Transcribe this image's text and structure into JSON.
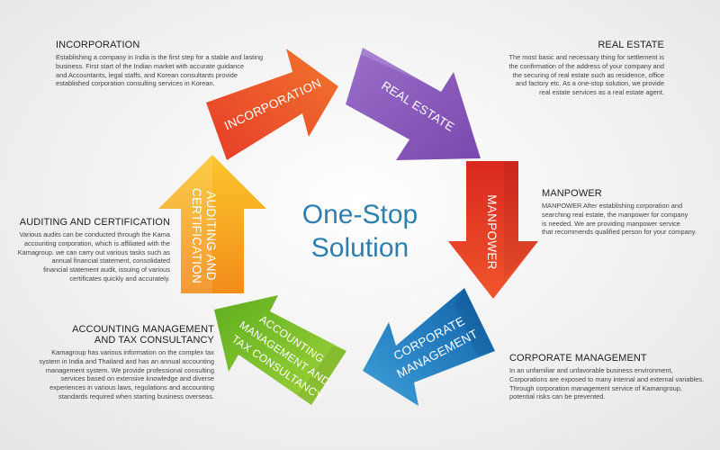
{
  "title": {
    "line1": "One-Stop",
    "line2": "Solution"
  },
  "arrows": {
    "incorporation": "INCORPORATION",
    "real_estate": "REAL ESTATE",
    "manpower": "MANPOWER",
    "corporate_line1": "CORPORATE",
    "corporate_line2": "MANAGEMENT",
    "accounting_line1": "ACCOUNTING",
    "accounting_line2": "MANAGEMENT AND",
    "accounting_line3": "TAX CONSULTANCY",
    "auditing_line1": "AUDITING AND",
    "auditing_line2": "CERTIFICATION"
  },
  "colors": {
    "incorporation": "#e8502a",
    "real_estate": "#8a5ab8",
    "manpower": "#e33a26",
    "corporate": "#1f78bd",
    "accounting": "#7cc12a",
    "auditing": "#f6a51b",
    "title": "#2f7fae"
  },
  "sections": {
    "incorporation": {
      "heading": "INCORPORATION",
      "lines": [
        "Establishing a company in India is the first step for a stable and lasting",
        "business. First start of the Indian market with accurate guidance",
        "and Accountants, legal staffs, and Korean consultants provide",
        "established corporation consulting services in Korean."
      ]
    },
    "real_estate": {
      "heading": "REAL ESTATE",
      "lines": [
        "The most basic and necessary thing for settlement is",
        "the confirmation of the address of your company and",
        "the securing of real estate such as residence, office",
        "and factory etc. As a one-stop solution, we provide",
        "real estate services as a real estate agent."
      ]
    },
    "manpower": {
      "heading": "MANPOWER",
      "lines": [
        "MANPOWER After establishing corporation and",
        "searching real estate, the manpower for company",
        "is needed. We are providing manpower service",
        "that recommends qualified person for your company."
      ]
    },
    "corporate": {
      "heading": "CORPORATE MANAGEMENT",
      "lines": [
        "In an unfamiliar and unfavorable business environment,",
        "Corporations are exposed to many internal and external variables.",
        "Through corporation management service of Kamangroup,",
        "potential risks can be prevented."
      ]
    },
    "accounting": {
      "heading_line1": "ACCOUNTING MANAGEMENT",
      "heading_line2": "AND TAX CONSULTANCY",
      "lines": [
        "Kamagroup has various information on the complex tax",
        "system in India and Thailand and has an annual accounting",
        "management system. We provide professional consulting",
        "services based on extensive knowledge and diverse",
        "experiences in various laws, regulations and accounting",
        "standards required when starting business overseas."
      ]
    },
    "auditing": {
      "heading": "AUDITING AND CERTIFICATION",
      "lines": [
        "Various audits can be conducted through the Kama",
        "accounting corporation, which is affiliated with the",
        "Kamagroup. we can carry out various tasks such as",
        "annual financial statement, consolidated",
        "financial statement audit, issuing of various",
        "certificates quickly and accurately."
      ]
    }
  }
}
